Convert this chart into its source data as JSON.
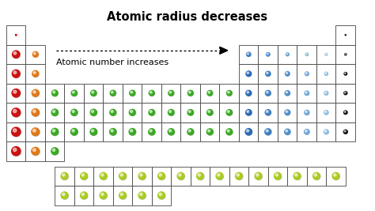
{
  "title": "Atomic radius decreases",
  "subtitle": "Atomic number increases",
  "bg_color": "#ffffff",
  "atoms": [
    {
      "row": 0,
      "col": 0,
      "color": "#cc0000",
      "r": 0.06,
      "tiny": true
    },
    {
      "row": 0,
      "col": 17,
      "color": "#222222",
      "r": 0.05,
      "tiny": true
    },
    {
      "row": 1,
      "col": 0,
      "color": "#cc1111",
      "r": 0.38
    },
    {
      "row": 1,
      "col": 1,
      "color": "#e07818",
      "r": 0.28
    },
    {
      "row": 1,
      "col": 12,
      "color": "#3d7fc4",
      "r": 0.21
    },
    {
      "row": 1,
      "col": 13,
      "color": "#4d8fcc",
      "r": 0.18
    },
    {
      "row": 1,
      "col": 14,
      "color": "#60a0d0",
      "r": 0.15
    },
    {
      "row": 1,
      "col": 15,
      "color": "#80b8d8",
      "r": 0.13
    },
    {
      "row": 1,
      "col": 16,
      "color": "#a0cce0",
      "r": 0.11
    },
    {
      "row": 1,
      "col": 17,
      "color": "#222222",
      "r": 0.09
    },
    {
      "row": 2,
      "col": 0,
      "color": "#cc1111",
      "r": 0.4
    },
    {
      "row": 2,
      "col": 1,
      "color": "#e07818",
      "r": 0.32
    },
    {
      "row": 2,
      "col": 12,
      "color": "#2a6ab8",
      "r": 0.27
    },
    {
      "row": 2,
      "col": 13,
      "color": "#3d7fc4",
      "r": 0.25
    },
    {
      "row": 2,
      "col": 14,
      "color": "#4d8fcc",
      "r": 0.22
    },
    {
      "row": 2,
      "col": 15,
      "color": "#70aadc",
      "r": 0.19
    },
    {
      "row": 2,
      "col": 16,
      "color": "#90c0e0",
      "r": 0.16
    },
    {
      "row": 2,
      "col": 17,
      "color": "#111111",
      "r": 0.14
    },
    {
      "row": 3,
      "col": 0,
      "color": "#cc1111",
      "r": 0.42
    },
    {
      "row": 3,
      "col": 1,
      "color": "#e07818",
      "r": 0.36
    },
    {
      "row": 3,
      "col": 2,
      "color": "#3aaa22",
      "r": 0.31
    },
    {
      "row": 3,
      "col": 3,
      "color": "#3aaa22",
      "r": 0.3
    },
    {
      "row": 3,
      "col": 4,
      "color": "#3aaa22",
      "r": 0.3
    },
    {
      "row": 3,
      "col": 5,
      "color": "#3aaa22",
      "r": 0.29
    },
    {
      "row": 3,
      "col": 6,
      "color": "#3aaa22",
      "r": 0.29
    },
    {
      "row": 3,
      "col": 7,
      "color": "#3aaa22",
      "r": 0.28
    },
    {
      "row": 3,
      "col": 8,
      "color": "#3aaa22",
      "r": 0.28
    },
    {
      "row": 3,
      "col": 9,
      "color": "#3aaa22",
      "r": 0.28
    },
    {
      "row": 3,
      "col": 10,
      "color": "#3aaa22",
      "r": 0.27
    },
    {
      "row": 3,
      "col": 11,
      "color": "#3aaa22",
      "r": 0.27
    },
    {
      "row": 3,
      "col": 12,
      "color": "#2a6ab8",
      "r": 0.28
    },
    {
      "row": 3,
      "col": 13,
      "color": "#3d7fc4",
      "r": 0.27
    },
    {
      "row": 3,
      "col": 14,
      "color": "#4d8fcc",
      "r": 0.25
    },
    {
      "row": 3,
      "col": 15,
      "color": "#70aadc",
      "r": 0.22
    },
    {
      "row": 3,
      "col": 16,
      "color": "#90c0e0",
      "r": 0.19
    },
    {
      "row": 3,
      "col": 17,
      "color": "#111111",
      "r": 0.16
    },
    {
      "row": 4,
      "col": 0,
      "color": "#cc1111",
      "r": 0.44
    },
    {
      "row": 4,
      "col": 1,
      "color": "#e07818",
      "r": 0.38
    },
    {
      "row": 4,
      "col": 2,
      "color": "#3aaa22",
      "r": 0.34
    },
    {
      "row": 4,
      "col": 3,
      "color": "#3aaa22",
      "r": 0.33
    },
    {
      "row": 4,
      "col": 4,
      "color": "#3aaa22",
      "r": 0.33
    },
    {
      "row": 4,
      "col": 5,
      "color": "#3aaa22",
      "r": 0.32
    },
    {
      "row": 4,
      "col": 6,
      "color": "#3aaa22",
      "r": 0.32
    },
    {
      "row": 4,
      "col": 7,
      "color": "#3aaa22",
      "r": 0.31
    },
    {
      "row": 4,
      "col": 8,
      "color": "#3aaa22",
      "r": 0.31
    },
    {
      "row": 4,
      "col": 9,
      "color": "#3aaa22",
      "r": 0.3
    },
    {
      "row": 4,
      "col": 10,
      "color": "#3aaa22",
      "r": 0.3
    },
    {
      "row": 4,
      "col": 11,
      "color": "#3aaa22",
      "r": 0.3
    },
    {
      "row": 4,
      "col": 12,
      "color": "#2a6ab8",
      "r": 0.3
    },
    {
      "row": 4,
      "col": 13,
      "color": "#3d7fc4",
      "r": 0.29
    },
    {
      "row": 4,
      "col": 14,
      "color": "#4d8fcc",
      "r": 0.27
    },
    {
      "row": 4,
      "col": 15,
      "color": "#70aadc",
      "r": 0.24
    },
    {
      "row": 4,
      "col": 16,
      "color": "#90c0e0",
      "r": 0.21
    },
    {
      "row": 4,
      "col": 17,
      "color": "#111111",
      "r": 0.18
    },
    {
      "row": 5,
      "col": 0,
      "color": "#cc1111",
      "r": 0.46
    },
    {
      "row": 5,
      "col": 1,
      "color": "#e07818",
      "r": 0.4
    },
    {
      "row": 5,
      "col": 2,
      "color": "#3aaa22",
      "r": 0.36
    },
    {
      "row": 5,
      "col": 3,
      "color": "#3aaa22",
      "r": 0.35
    },
    {
      "row": 5,
      "col": 4,
      "color": "#3aaa22",
      "r": 0.35
    },
    {
      "row": 5,
      "col": 5,
      "color": "#3aaa22",
      "r": 0.34
    },
    {
      "row": 5,
      "col": 6,
      "color": "#3aaa22",
      "r": 0.34
    },
    {
      "row": 5,
      "col": 7,
      "color": "#3aaa22",
      "r": 0.33
    },
    {
      "row": 5,
      "col": 8,
      "color": "#3aaa22",
      "r": 0.33
    },
    {
      "row": 5,
      "col": 9,
      "color": "#3aaa22",
      "r": 0.32
    },
    {
      "row": 5,
      "col": 10,
      "color": "#3aaa22",
      "r": 0.32
    },
    {
      "row": 5,
      "col": 11,
      "color": "#3aaa22",
      "r": 0.32
    },
    {
      "row": 5,
      "col": 12,
      "color": "#2a6ab8",
      "r": 0.34
    },
    {
      "row": 5,
      "col": 13,
      "color": "#3d7fc4",
      "r": 0.32
    },
    {
      "row": 5,
      "col": 14,
      "color": "#4d8fcc",
      "r": 0.29
    },
    {
      "row": 5,
      "col": 15,
      "color": "#70aadc",
      "r": 0.26
    },
    {
      "row": 5,
      "col": 16,
      "color": "#90c0e0",
      "r": 0.23
    },
    {
      "row": 5,
      "col": 17,
      "color": "#111111",
      "r": 0.2
    },
    {
      "row": 6,
      "col": 0,
      "color": "#cc1111",
      "r": 0.46
    },
    {
      "row": 6,
      "col": 1,
      "color": "#e07818",
      "r": 0.4
    },
    {
      "row": 6,
      "col": 2,
      "color": "#3aaa22",
      "r": 0.36
    }
  ],
  "lant_cols": 15,
  "lant_color": "#aacc22",
  "lant_r": 0.36,
  "act_cols": 6,
  "act_color": "#aacc22",
  "act_r": 0.36
}
